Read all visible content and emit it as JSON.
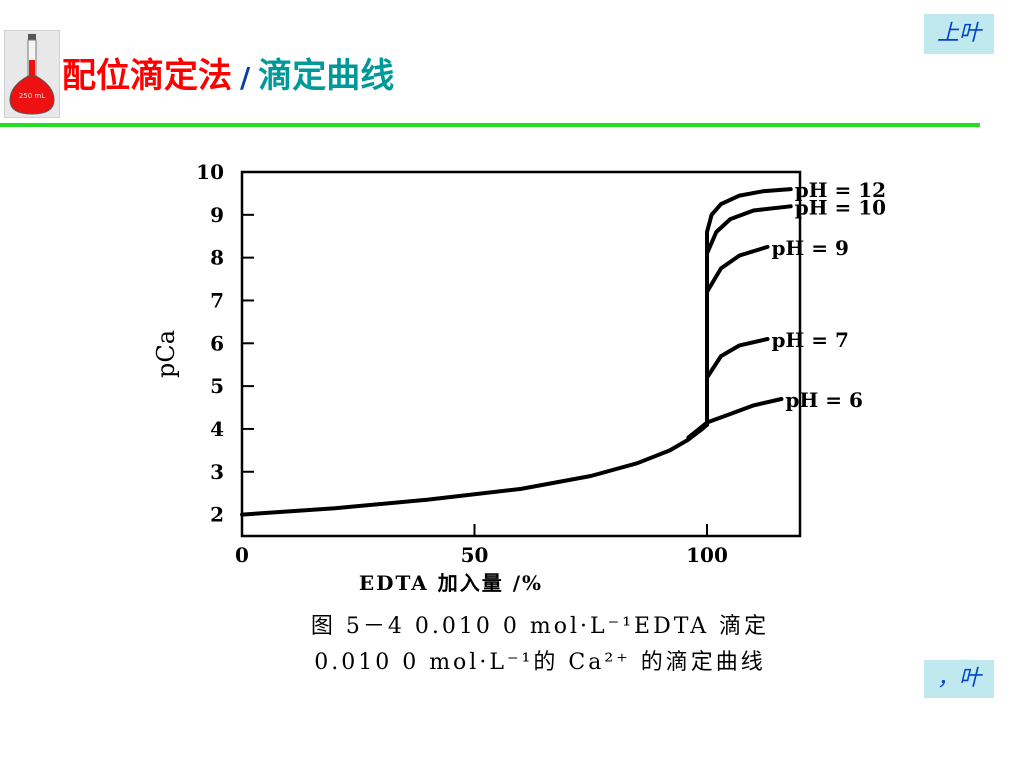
{
  "header": {
    "title_main": "配位滴定法",
    "title_sep": "/",
    "title_sub": "滴定曲线",
    "flask_label": "250 mL"
  },
  "nav": {
    "prev_label": "上叶",
    "next_label": "，叶"
  },
  "chart_data": {
    "type": "line",
    "xlabel": "EDTA 加入量 /%",
    "ylabel": "pCa",
    "xlim": [
      0,
      120
    ],
    "ylim": [
      1.5,
      10
    ],
    "x_ticks": [
      "0",
      "50",
      "100"
    ],
    "y_ticks": [
      "2",
      "3",
      "4",
      "5",
      "6",
      "7",
      "8",
      "9",
      "10"
    ],
    "grid": false,
    "legend": "curve labels at right end of each series",
    "common_segment": {
      "x": [
        0,
        20,
        40,
        60,
        75,
        85,
        92,
        96,
        99,
        100
      ],
      "y": [
        2.0,
        2.15,
        2.35,
        2.6,
        2.9,
        3.2,
        3.5,
        3.75,
        4.0,
        4.1
      ]
    },
    "series": [
      {
        "name": "pH = 12",
        "x": [
          100,
          100,
          101,
          103,
          107,
          112,
          118
        ],
        "y": [
          4.1,
          8.6,
          9.0,
          9.25,
          9.45,
          9.55,
          9.6
        ]
      },
      {
        "name": "pH = 10",
        "x": [
          100,
          100,
          102,
          105,
          110,
          118
        ],
        "y": [
          4.1,
          8.1,
          8.6,
          8.9,
          9.1,
          9.2
        ]
      },
      {
        "name": "pH = 9",
        "x": [
          100,
          100,
          103,
          107,
          113
        ],
        "y": [
          4.1,
          7.2,
          7.75,
          8.05,
          8.25
        ]
      },
      {
        "name": "pH = 7",
        "x": [
          100,
          100,
          103,
          107,
          113
        ],
        "y": [
          4.1,
          5.2,
          5.7,
          5.95,
          6.1
        ]
      },
      {
        "name": "pH = 6",
        "x": [
          96,
          100,
          105,
          110,
          116
        ],
        "y": [
          3.8,
          4.15,
          4.35,
          4.55,
          4.7
        ]
      }
    ]
  },
  "caption": {
    "line1": "图 5－4  0.010 0 mol·L⁻¹EDTA 滴定",
    "line2": "0.010 0 mol·L⁻¹的 Ca²⁺ 的滴定曲线"
  }
}
